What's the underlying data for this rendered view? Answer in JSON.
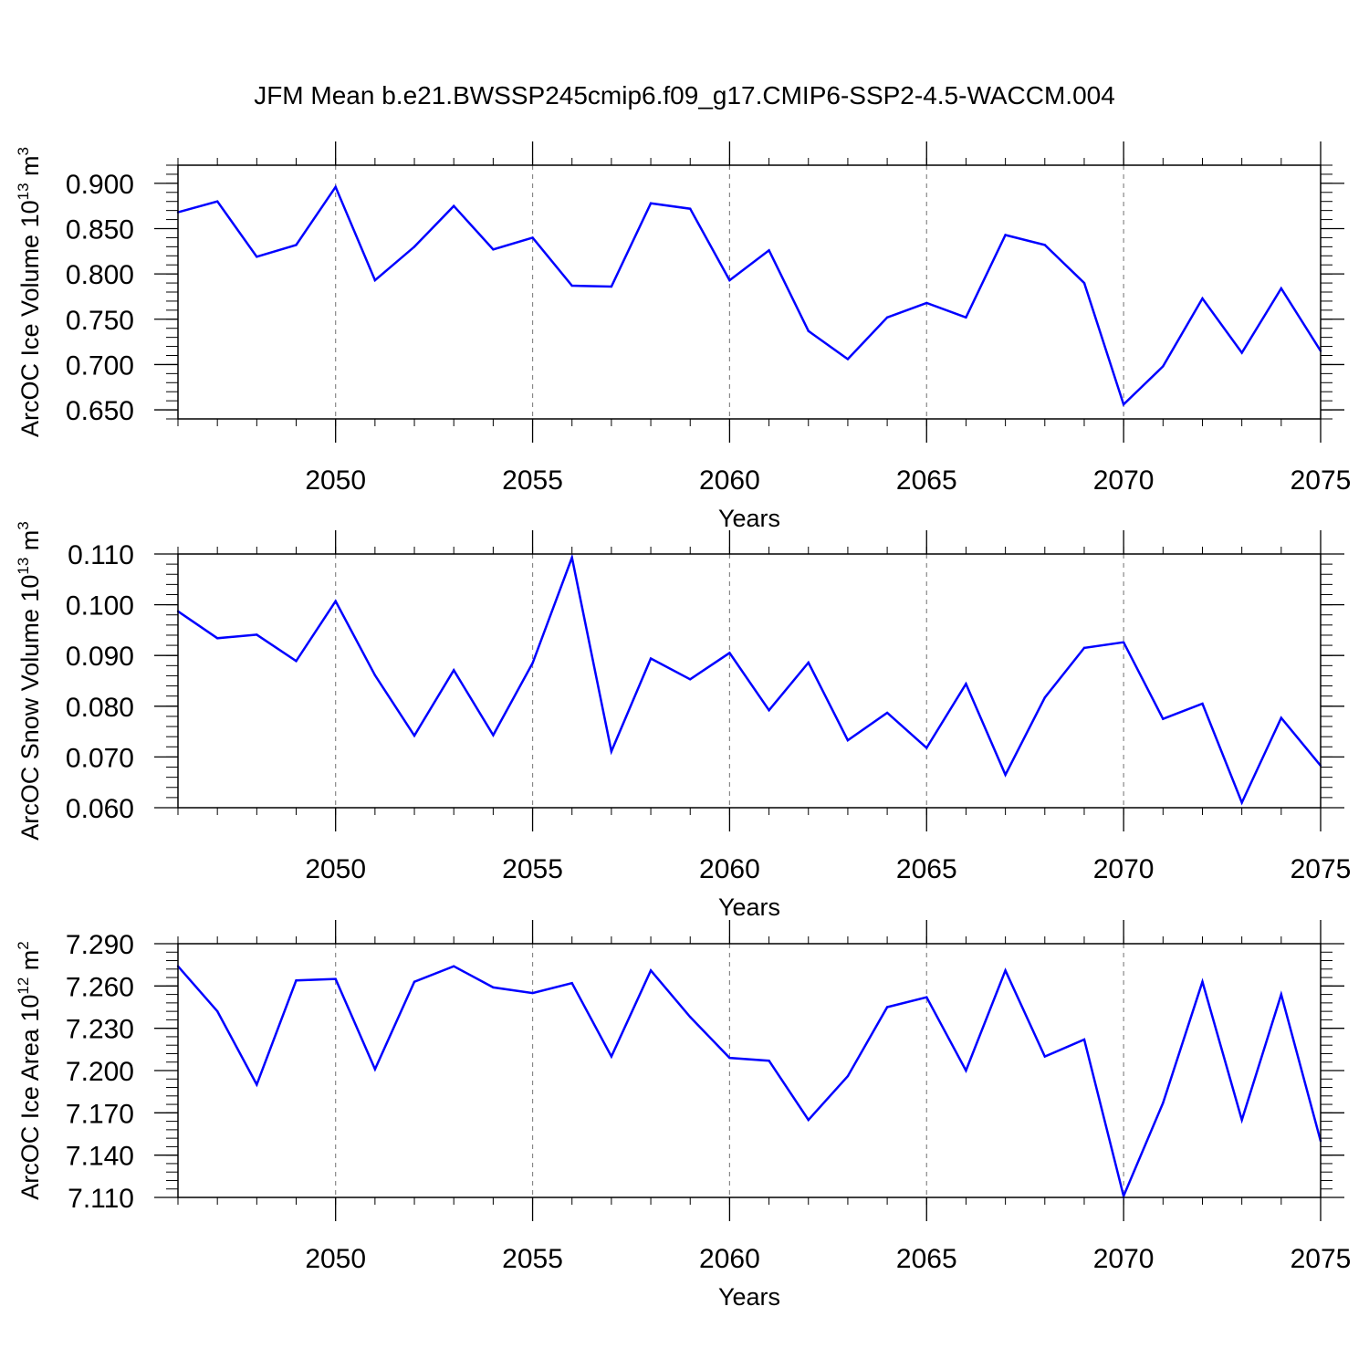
{
  "figure": {
    "title": "JFM Mean b.e21.BWSSP245cmip6.f09_g17.CMIP6-SSP2-4.5-WACCM.004"
  },
  "chart_data": [
    {
      "type": "line",
      "ylabel": {
        "prefix": "ArcOC Ice Volume 10",
        "exponent": "13",
        "unit": " m",
        "unit_exponent": "3"
      },
      "xlabel": "Years",
      "xlim": [
        2046,
        2075
      ],
      "ylim": [
        0.64,
        0.92
      ],
      "x_ticks": [
        2050,
        2055,
        2060,
        2065,
        2070,
        2075
      ],
      "x_tick_labels": [
        "2050",
        "2055",
        "2060",
        "2065",
        "2070",
        "2075"
      ],
      "y_ticks": [
        0.65,
        0.7,
        0.75,
        0.8,
        0.85,
        0.9
      ],
      "y_tick_labels": [
        "0.650",
        "0.700",
        "0.750",
        "0.800",
        "0.850",
        "0.900"
      ],
      "grid": "vertical dashed at x ticks",
      "line_color": "#0000ff",
      "x": [
        2046,
        2047,
        2048,
        2049,
        2050,
        2051,
        2052,
        2053,
        2054,
        2055,
        2056,
        2057,
        2058,
        2059,
        2060,
        2061,
        2062,
        2063,
        2064,
        2065,
        2066,
        2067,
        2068,
        2069,
        2070,
        2071,
        2072,
        2073,
        2074,
        2075
      ],
      "values": [
        0.868,
        0.88,
        0.819,
        0.832,
        0.896,
        0.793,
        0.83,
        0.875,
        0.827,
        0.84,
        0.787,
        0.786,
        0.878,
        0.872,
        0.793,
        0.826,
        0.737,
        0.706,
        0.752,
        0.768,
        0.752,
        0.843,
        0.832,
        0.79,
        0.656,
        0.698,
        0.773,
        0.713,
        0.784,
        0.715
      ]
    },
    {
      "type": "line",
      "ylabel": {
        "prefix": "ArcOC Snow Volume 10",
        "exponent": "13",
        "unit": " m",
        "unit_exponent": "3"
      },
      "xlabel": "Years",
      "xlim": [
        2046,
        2075
      ],
      "ylim": [
        0.06,
        0.11
      ],
      "x_ticks": [
        2050,
        2055,
        2060,
        2065,
        2070,
        2075
      ],
      "x_tick_labels": [
        "2050",
        "2055",
        "2060",
        "2065",
        "2070",
        "2075"
      ],
      "y_ticks": [
        0.06,
        0.07,
        0.08,
        0.09,
        0.1,
        0.11
      ],
      "y_tick_labels": [
        "0.060",
        "0.070",
        "0.080",
        "0.090",
        "0.100",
        "0.110"
      ],
      "grid": "vertical dashed at x ticks",
      "line_color": "#0000ff",
      "x": [
        2046,
        2047,
        2048,
        2049,
        2050,
        2051,
        2052,
        2053,
        2054,
        2055,
        2056,
        2057,
        2058,
        2059,
        2060,
        2061,
        2062,
        2063,
        2064,
        2065,
        2066,
        2067,
        2068,
        2069,
        2070,
        2071,
        2072,
        2073,
        2074,
        2075
      ],
      "values": [
        0.0987,
        0.0934,
        0.0941,
        0.0889,
        0.1007,
        0.0861,
        0.0742,
        0.0871,
        0.0743,
        0.0885,
        0.1093,
        0.0711,
        0.0894,
        0.0853,
        0.0905,
        0.0792,
        0.0886,
        0.0733,
        0.0787,
        0.0718,
        0.0844,
        0.0665,
        0.0817,
        0.0915,
        0.0926,
        0.0775,
        0.0805,
        0.061,
        0.0777,
        0.0683
      ]
    },
    {
      "type": "line",
      "ylabel": {
        "prefix": "ArcOC Ice Area 10",
        "exponent": "12",
        "unit": " m",
        "unit_exponent": "2"
      },
      "xlabel": "Years",
      "xlim": [
        2046,
        2075
      ],
      "ylim": [
        7.11,
        7.29
      ],
      "x_ticks": [
        2050,
        2055,
        2060,
        2065,
        2070,
        2075
      ],
      "x_tick_labels": [
        "2050",
        "2055",
        "2060",
        "2065",
        "2070",
        "2075"
      ],
      "y_ticks": [
        7.11,
        7.14,
        7.17,
        7.2,
        7.23,
        7.26,
        7.29
      ],
      "y_tick_labels": [
        "7.110",
        "7.140",
        "7.170",
        "7.200",
        "7.230",
        "7.260",
        "7.290"
      ],
      "grid": "vertical dashed at x ticks",
      "line_color": "#0000ff",
      "x": [
        2046,
        2047,
        2048,
        2049,
        2050,
        2051,
        2052,
        2053,
        2054,
        2055,
        2056,
        2057,
        2058,
        2059,
        2060,
        2061,
        2062,
        2063,
        2064,
        2065,
        2066,
        2067,
        2068,
        2069,
        2070,
        2071,
        2072,
        2073,
        2074,
        2075
      ],
      "values": [
        7.274,
        7.242,
        7.19,
        7.264,
        7.265,
        7.201,
        7.263,
        7.274,
        7.259,
        7.255,
        7.262,
        7.21,
        7.271,
        7.238,
        7.209,
        7.207,
        7.165,
        7.196,
        7.245,
        7.252,
        7.2,
        7.271,
        7.21,
        7.222,
        7.111,
        7.177,
        7.263,
        7.165,
        7.254,
        7.15
      ]
    }
  ]
}
